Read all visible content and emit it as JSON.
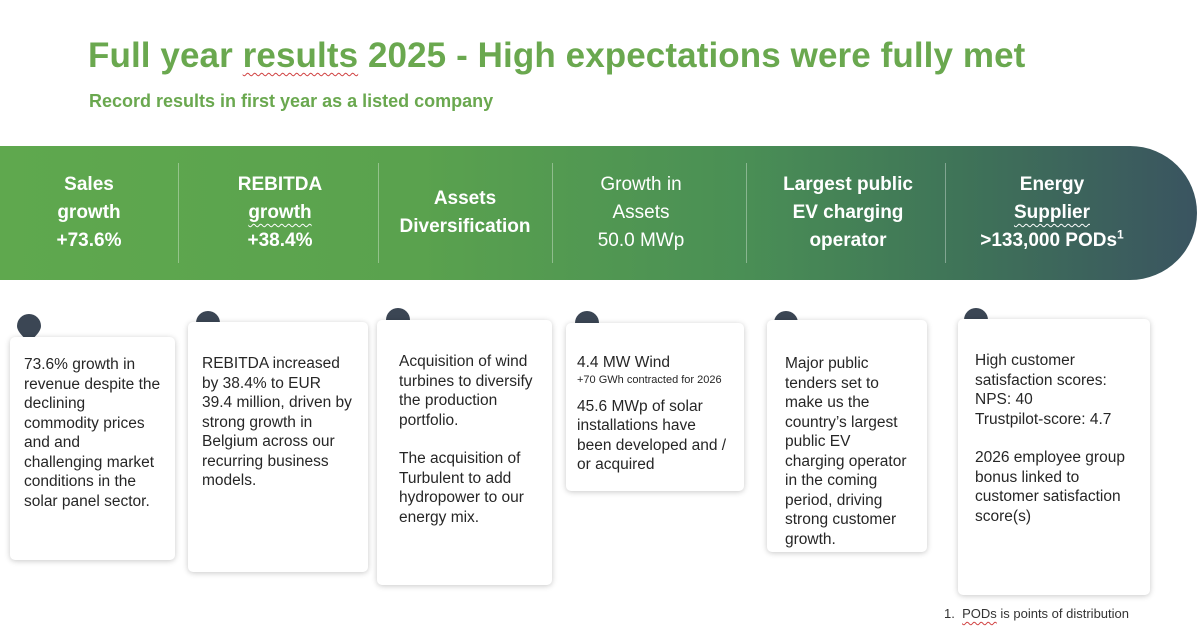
{
  "header": {
    "title_pre": "Full year ",
    "title_squiggle": "results",
    "title_post": " 2025 - High expectations were fully met",
    "subtitle": "Record results in first year as a listed company"
  },
  "banner": {
    "gradient_colors": [
      "#5fa84e",
      "#3f7458",
      "#3a5460"
    ],
    "columns": [
      {
        "lines": [
          "Sales",
          "growth",
          "+73.6%"
        ]
      },
      {
        "lines": [
          "REBITDA",
          "growth",
          "+38.4%"
        ]
      },
      {
        "lines": [
          "Assets",
          "Diversification"
        ]
      },
      {
        "lines": [
          "Growth in",
          "Assets",
          "50.0 MWp"
        ]
      },
      {
        "lines": [
          "Largest public",
          "EV charging",
          "operator"
        ]
      },
      {
        "lines": [
          "Energy",
          "Supplier",
          ">133,000 PODs",
          "1"
        ]
      }
    ]
  },
  "pin_color": "#3b4654",
  "cards": [
    {
      "text": "73.6% growth in revenue despite the declining commodity prices and and challenging market conditions in the solar panel sector."
    },
    {
      "text": "REBITDA increased by 38.4% to EUR 39.4 million, driven by strong growth in Belgium across our recurring business models."
    },
    {
      "p1": "Acquisition of wind turbines to diversify the production portfolio.",
      "p2": "The acquisition of Turbulent to add hydropower to our energy mix."
    },
    {
      "p1": "4.4 MW Wind",
      "p1_small": "+70 GWh contracted for 2026",
      "p2": "45.6 MWp of solar installations have been developed and / or acquired"
    },
    {
      "text": "Major public tenders set to make us the country’s largest public EV charging operator in the coming period, driving strong customer growth."
    },
    {
      "l1": "High customer satisfaction scores:",
      "l2": "NPS: 40",
      "l3": "Trustpilot-score: 4.7",
      "p2": "2026 employee group bonus linked to customer satisfaction score(s)"
    }
  ],
  "footnote": {
    "num": "1.",
    "squiggle": "PODs",
    "rest": " is points of distribution"
  }
}
